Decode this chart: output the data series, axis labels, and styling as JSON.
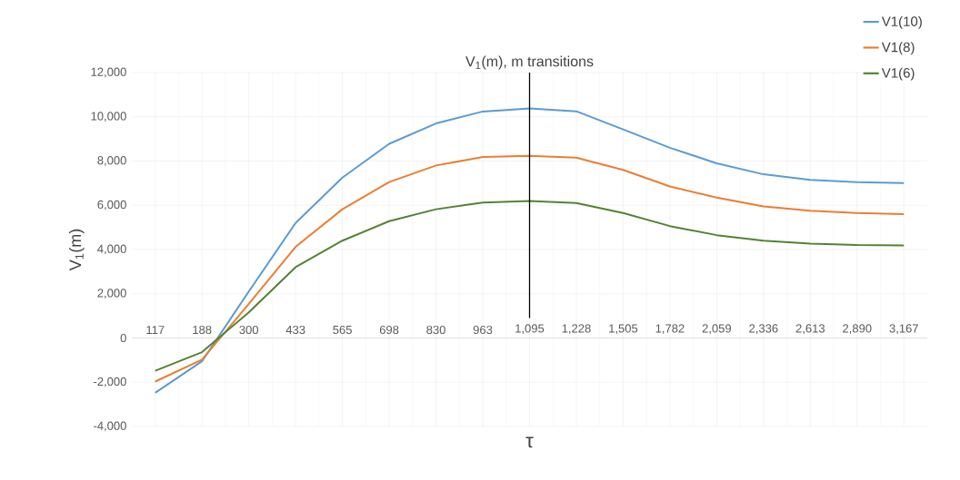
{
  "chart_data": {
    "type": "line",
    "title": "V$_{1}$(m),  m transitions",
    "xlabel": "τ",
    "ylabel": "V$_{1}$(m)",
    "categories": [
      "117",
      "188",
      "300",
      "433",
      "565",
      "698",
      "830",
      "963",
      "1,095",
      "1,228",
      "1,505",
      "1,782",
      "2,059",
      "2,336",
      "2,613",
      "2,890",
      "3,167"
    ],
    "series": [
      {
        "name": "V1(10)",
        "color": "#5b9bd5",
        "values": [
          -2480,
          -1050,
          2100,
          5200,
          7250,
          8780,
          9700,
          10240,
          10380,
          10250,
          9430,
          8600,
          7900,
          7400,
          7150,
          7050,
          7000
        ]
      },
      {
        "name": "V1(8)",
        "color": "#ed7d31",
        "values": [
          -1970,
          -980,
          1540,
          4120,
          5820,
          7050,
          7800,
          8180,
          8240,
          8150,
          7600,
          6850,
          6350,
          5950,
          5750,
          5650,
          5600
        ]
      },
      {
        "name": "V1(6)",
        "color": "#548235",
        "values": [
          -1480,
          -640,
          1160,
          3200,
          4400,
          5280,
          5820,
          6120,
          6190,
          6100,
          5650,
          5060,
          4650,
          4400,
          4270,
          4200,
          4180
        ]
      }
    ],
    "ylim": [
      -4000,
      12000
    ],
    "yticks": [
      {
        "value": -4000,
        "label": "-4,000"
      },
      {
        "value": -2000,
        "label": "-2,000"
      },
      {
        "value": 0,
        "label": "0"
      },
      {
        "value": 2000,
        "label": "2,000"
      },
      {
        "value": 4000,
        "label": "4,000"
      },
      {
        "value": 6000,
        "label": "6,000"
      },
      {
        "value": 8000,
        "label": "8,000"
      },
      {
        "value": 10000,
        "label": "10,000"
      },
      {
        "value": 12000,
        "label": "12,000"
      }
    ],
    "ref_lines": [
      {
        "axis": "x",
        "value": "1,095",
        "color": "#000000"
      }
    ],
    "grid": true,
    "legend": "top right",
    "marker": "none",
    "line_style": "solid"
  }
}
